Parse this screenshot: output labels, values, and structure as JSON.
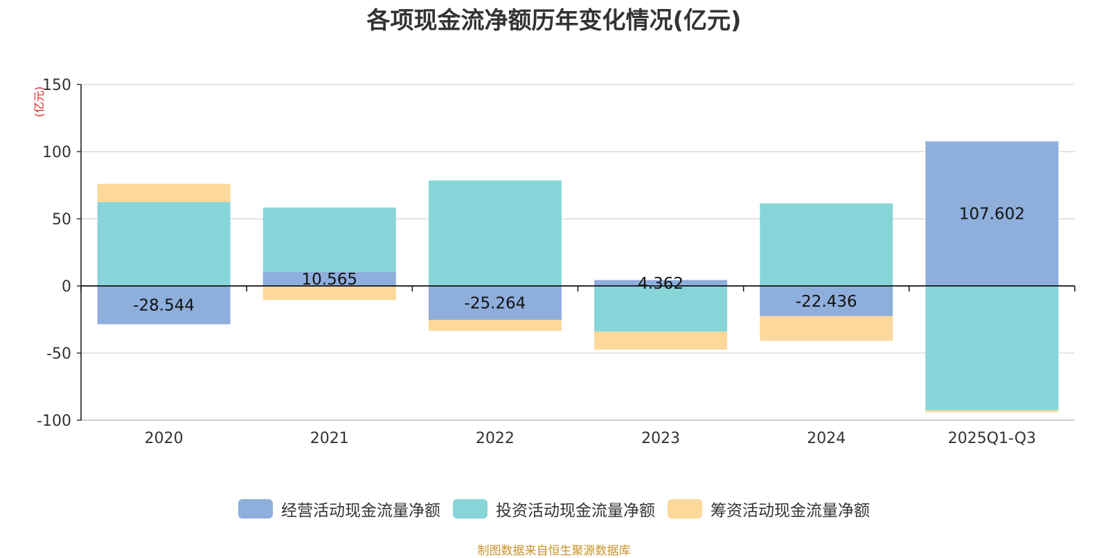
{
  "chart_data": {
    "type": "bar",
    "stacked": true,
    "title": "各项现金流净额历年变化情况(亿元)",
    "ylabel": "(亿元)",
    "xlabel": "",
    "ylim": [
      -100,
      150
    ],
    "yticks": [
      -100,
      -50,
      0,
      50,
      100,
      150
    ],
    "categories": [
      "2020",
      "2021",
      "2022",
      "2023",
      "2024",
      "2025Q1-Q3"
    ],
    "series": [
      {
        "name": "经营活动现金流量净额",
        "color": "#8eaedc",
        "values": [
          -28.544,
          10.565,
          -25.264,
          4.362,
          -22.436,
          107.602
        ],
        "labels": [
          "-28.544",
          "10.565",
          "-25.264",
          "4.362",
          "-22.436",
          "107.602"
        ]
      },
      {
        "name": "投资活动现金流量净额",
        "color": "#88d5d9",
        "values": [
          62.5,
          47.8,
          78.5,
          -34.0,
          61.5,
          -92.5
        ]
      },
      {
        "name": "筹资活动现金流量净额",
        "color": "#fdd89b",
        "values": [
          13.5,
          -10.5,
          -8.2,
          -13.5,
          -18.4,
          -1.5
        ]
      }
    ],
    "legend_position": "bottom",
    "grid": true
  },
  "source_note": "制图数据来自恒生聚源数据库"
}
